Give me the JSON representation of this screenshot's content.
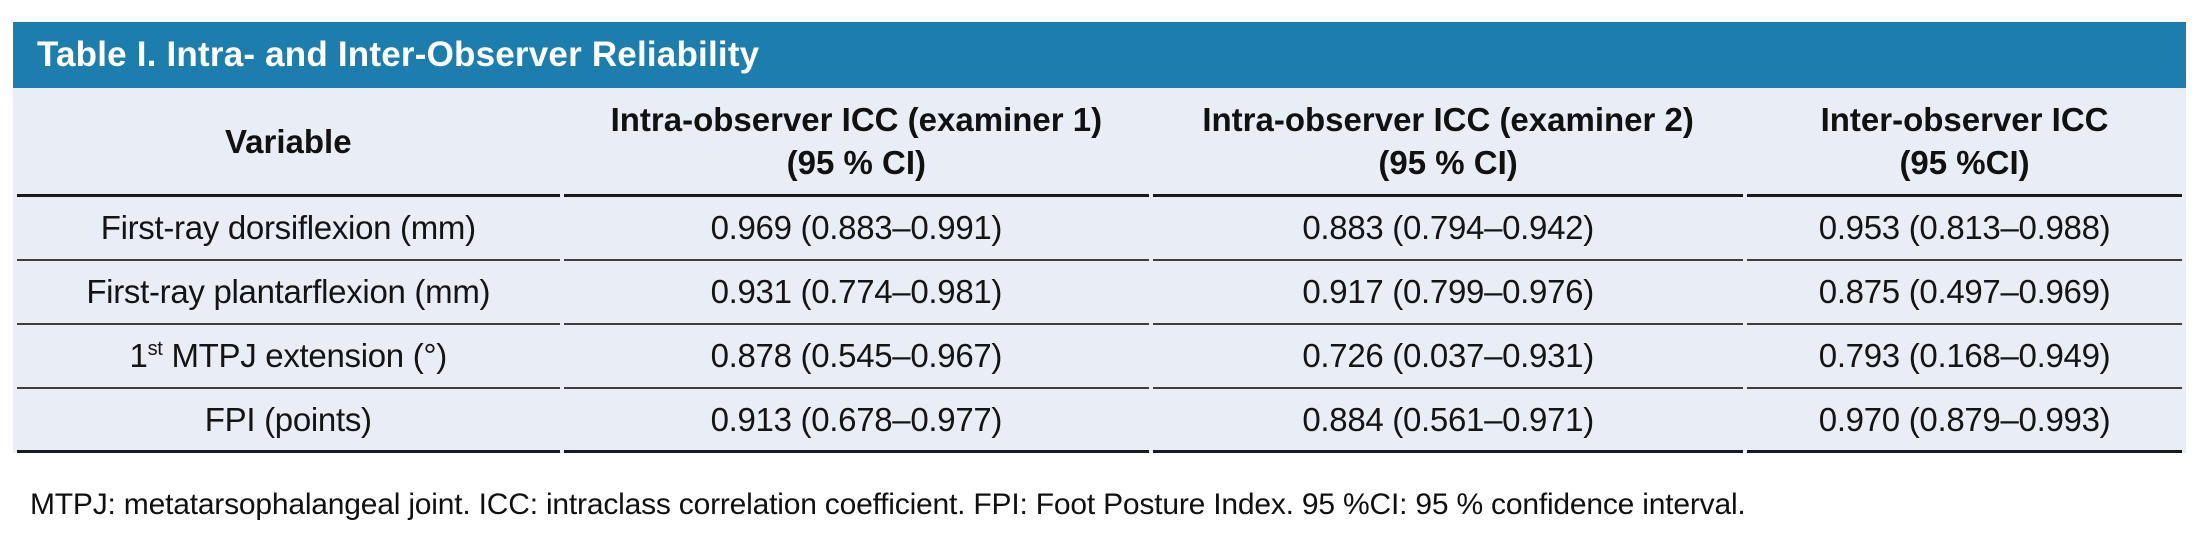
{
  "colors": {
    "header_bg": "#1d7ead",
    "body_bg": "#e9edf5",
    "heavy_rule": "#1a1a1a",
    "row_rule": "#3f3f3f"
  },
  "table": {
    "title": "Table I. Intra- and Inter-Observer Reliability",
    "columns": [
      {
        "line1": "Variable",
        "line2": ""
      },
      {
        "line1": "Intra-observer ICC (examiner 1)",
        "line2": "(95 % CI)"
      },
      {
        "line1": "Intra-observer ICC (examiner 2)",
        "line2": "(95 % CI)"
      },
      {
        "line1": "Inter-observer ICC",
        "line2": "(95 %CI)"
      }
    ],
    "rows": [
      {
        "variable": "First-ray dorsiflexion (mm)",
        "icc_examiner1": "0.969 (0.883–0.991)",
        "icc_examiner2": "0.883 (0.794–0.942)",
        "inter_observer": "0.953 (0.813–0.988)"
      },
      {
        "variable": "First-ray plantarflexion (mm)",
        "icc_examiner1": "0.931 (0.774–0.981)",
        "icc_examiner2": "0.917 (0.799–0.976)",
        "inter_observer": "0.875 (0.497–0.969)"
      },
      {
        "variable_prefix": "1",
        "variable_sup": "st",
        "variable_rest": " MTPJ extension (°)",
        "icc_examiner1": "0.878 (0.545–0.967)",
        "icc_examiner2": "0.726 (0.037–0.931)",
        "inter_observer": "0.793 (0.168–0.949)"
      },
      {
        "variable": "FPI (points)",
        "icc_examiner1": "0.913 (0.678–0.977)",
        "icc_examiner2": "0.884 (0.561–0.971)",
        "inter_observer": "0.970 (0.879–0.993)"
      }
    ],
    "footnote": "MTPJ: metatarsophalangeal joint. ICC: intraclass correlation coefficient. FPI: Foot Posture Index. 95 %CI: 95 % confidence interval."
  }
}
